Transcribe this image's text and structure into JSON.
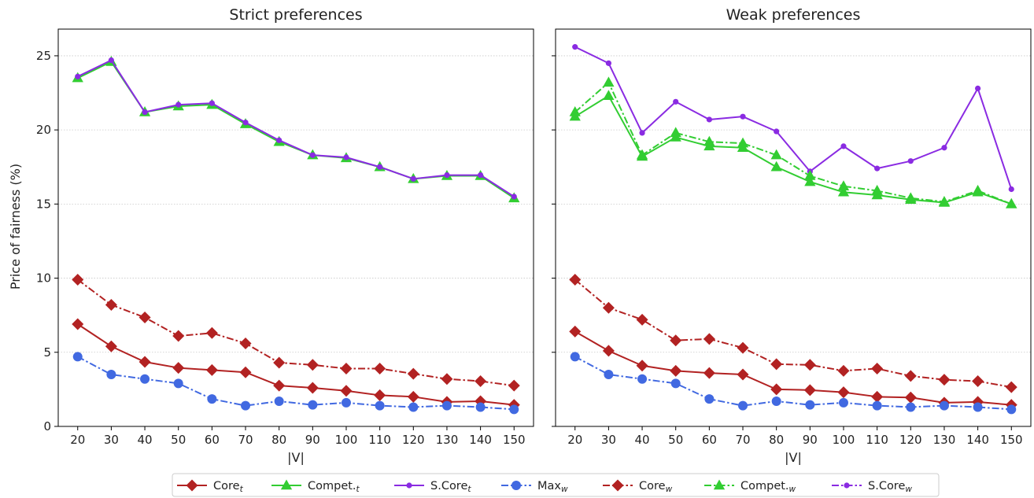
{
  "y_axis_label": "Price of fairness (%)",
  "chart_data": [
    {
      "type": "line",
      "title": "Strict preferences",
      "xlabel": "|V|",
      "ylabel": "Price of fairness (%)",
      "x": [
        20,
        30,
        40,
        50,
        60,
        70,
        80,
        90,
        100,
        110,
        120,
        130,
        140,
        150
      ],
      "ylim": [
        0,
        26.8
      ],
      "yticks": [
        0,
        5,
        10,
        15,
        20,
        25
      ],
      "grid": "horizontal dotted",
      "series": [
        {
          "key": "core_t",
          "color": "#b22222",
          "dash": "solid",
          "marker": "diamond",
          "values": [
            6.9,
            5.4,
            4.35,
            3.95,
            3.8,
            3.65,
            2.75,
            2.6,
            2.4,
            2.1,
            2.0,
            1.65,
            1.7,
            1.45
          ]
        },
        {
          "key": "compet_t",
          "color": "#32cd32",
          "dash": "solid",
          "marker": "triangle",
          "values": [
            23.5,
            24.6,
            21.2,
            21.6,
            21.7,
            20.4,
            19.2,
            18.3,
            18.1,
            17.5,
            16.7,
            16.9,
            16.9,
            15.4
          ]
        },
        {
          "key": "score_t",
          "color": "#8a2be2",
          "dash": "solid",
          "marker": "dot",
          "values": [
            23.6,
            24.7,
            21.2,
            21.7,
            21.8,
            20.5,
            19.3,
            18.3,
            18.15,
            17.5,
            16.7,
            16.95,
            16.95,
            15.5
          ]
        },
        {
          "key": "max_w",
          "color": "#4169e1",
          "dash": "dashdot",
          "marker": "circle",
          "values": [
            4.7,
            3.5,
            3.2,
            2.9,
            1.85,
            1.4,
            1.7,
            1.45,
            1.6,
            1.4,
            1.3,
            1.4,
            1.3,
            1.15
          ]
        },
        {
          "key": "core_w",
          "color": "#b22222",
          "dash": "dashdot",
          "marker": "diamond",
          "values": [
            9.9,
            8.2,
            7.35,
            6.1,
            6.3,
            5.6,
            4.3,
            4.15,
            3.9,
            3.9,
            3.55,
            3.2,
            3.05,
            2.75
          ]
        }
      ]
    },
    {
      "type": "line",
      "title": "Weak preferences",
      "xlabel": "|V|",
      "x": [
        20,
        30,
        40,
        50,
        60,
        70,
        80,
        90,
        100,
        110,
        120,
        130,
        140,
        150
      ],
      "ylim": [
        0,
        26.8
      ],
      "yticks": [
        0,
        5,
        10,
        15,
        20,
        25
      ],
      "grid": "horizontal dotted",
      "series": [
        {
          "key": "core_t",
          "color": "#b22222",
          "dash": "solid",
          "marker": "diamond",
          "values": [
            6.4,
            5.1,
            4.1,
            3.75,
            3.6,
            3.5,
            2.5,
            2.45,
            2.3,
            2.0,
            1.95,
            1.6,
            1.65,
            1.45
          ]
        },
        {
          "key": "compet_t",
          "color": "#32cd32",
          "dash": "solid",
          "marker": "triangle",
          "values": [
            20.9,
            22.3,
            18.2,
            19.5,
            18.9,
            18.8,
            17.5,
            16.5,
            15.8,
            15.6,
            15.3,
            15.1,
            15.8,
            15.0
          ]
        },
        {
          "key": "score_t",
          "color": "#8a2be2",
          "dash": "solid",
          "marker": "dot",
          "values": [
            25.6,
            24.5,
            19.8,
            21.9,
            20.7,
            20.9,
            19.9,
            17.2,
            18.9,
            17.4,
            17.9,
            18.8,
            22.8,
            16.0
          ]
        },
        {
          "key": "max_w",
          "color": "#4169e1",
          "dash": "dashdot",
          "marker": "circle",
          "values": [
            4.7,
            3.5,
            3.2,
            2.9,
            1.85,
            1.4,
            1.7,
            1.45,
            1.6,
            1.4,
            1.3,
            1.4,
            1.3,
            1.15
          ]
        },
        {
          "key": "core_w",
          "color": "#b22222",
          "dash": "dashdot",
          "marker": "diamond",
          "values": [
            9.9,
            8.0,
            7.2,
            5.8,
            5.9,
            5.3,
            4.2,
            4.15,
            3.75,
            3.9,
            3.4,
            3.15,
            3.05,
            2.65
          ]
        },
        {
          "key": "compet_w",
          "color": "#32cd32",
          "dash": "dashdot",
          "marker": "triangle",
          "values": [
            21.2,
            23.2,
            18.3,
            19.8,
            19.2,
            19.1,
            18.3,
            16.9,
            16.2,
            15.9,
            15.4,
            15.15,
            15.9,
            15.0
          ]
        }
      ]
    }
  ],
  "legend": {
    "placement": "bottom-center",
    "items": [
      {
        "key": "core_t",
        "label": "Core",
        "sub": "t",
        "color": "#b22222",
        "dash": "solid",
        "marker": "diamond"
      },
      {
        "key": "compet_t",
        "label": "Compet.",
        "sub": "t",
        "color": "#32cd32",
        "dash": "solid",
        "marker": "triangle"
      },
      {
        "key": "score_t",
        "label": "S.Core",
        "sub": "t",
        "color": "#8a2be2",
        "dash": "solid",
        "marker": "dot"
      },
      {
        "key": "max_w",
        "label": "Max",
        "sub": "w",
        "color": "#4169e1",
        "dash": "dashdot",
        "marker": "circle"
      },
      {
        "key": "core_w",
        "label": "Core",
        "sub": "w",
        "color": "#b22222",
        "dash": "dashdot",
        "marker": "diamond"
      },
      {
        "key": "compet_w",
        "label": "Compet.",
        "sub": "w",
        "color": "#32cd32",
        "dash": "dashdot",
        "marker": "triangle"
      },
      {
        "key": "score_w",
        "label": "S.Core",
        "sub": "w",
        "color": "#8a2be2",
        "dash": "dashdot",
        "marker": "dot"
      }
    ]
  }
}
